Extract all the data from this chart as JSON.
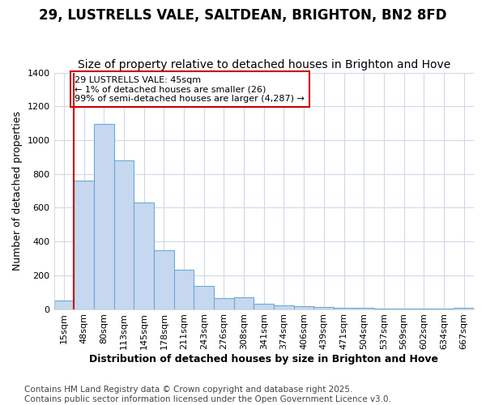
{
  "title": "29, LUSTRELLS VALE, SALTDEAN, BRIGHTON, BN2 8FD",
  "subtitle": "Size of property relative to detached houses in Brighton and Hove",
  "xlabel": "Distribution of detached houses by size in Brighton and Hove",
  "ylabel": "Number of detached properties",
  "categories": [
    "15sqm",
    "48sqm",
    "80sqm",
    "113sqm",
    "145sqm",
    "178sqm",
    "211sqm",
    "243sqm",
    "276sqm",
    "308sqm",
    "341sqm",
    "374sqm",
    "406sqm",
    "439sqm",
    "471sqm",
    "504sqm",
    "537sqm",
    "569sqm",
    "602sqm",
    "634sqm",
    "667sqm"
  ],
  "bar_values": [
    50,
    760,
    1095,
    880,
    630,
    348,
    235,
    135,
    65,
    70,
    30,
    20,
    15,
    10,
    8,
    7,
    5,
    5,
    5,
    5,
    8
  ],
  "bar_color": "#c5d8f0",
  "bar_edge_color": "#6aaad4",
  "bg_color": "#ffffff",
  "grid_color": "#d0d8e8",
  "annotation_text": "29 LUSTRELLS VALE: 45sqm\n← 1% of detached houses are smaller (26)\n99% of semi-detached houses are larger (4,287) →",
  "annotation_box_edgecolor": "#cc0000",
  "red_line_color": "#cc0000",
  "ylim": [
    0,
    1400
  ],
  "yticks": [
    0,
    200,
    400,
    600,
    800,
    1000,
    1200,
    1400
  ],
  "footer": "Contains HM Land Registry data © Crown copyright and database right 2025.\nContains public sector information licensed under the Open Government Licence v3.0.",
  "title_fontsize": 12,
  "subtitle_fontsize": 10,
  "axis_label_fontsize": 9,
  "tick_fontsize": 8,
  "footer_fontsize": 7.5
}
